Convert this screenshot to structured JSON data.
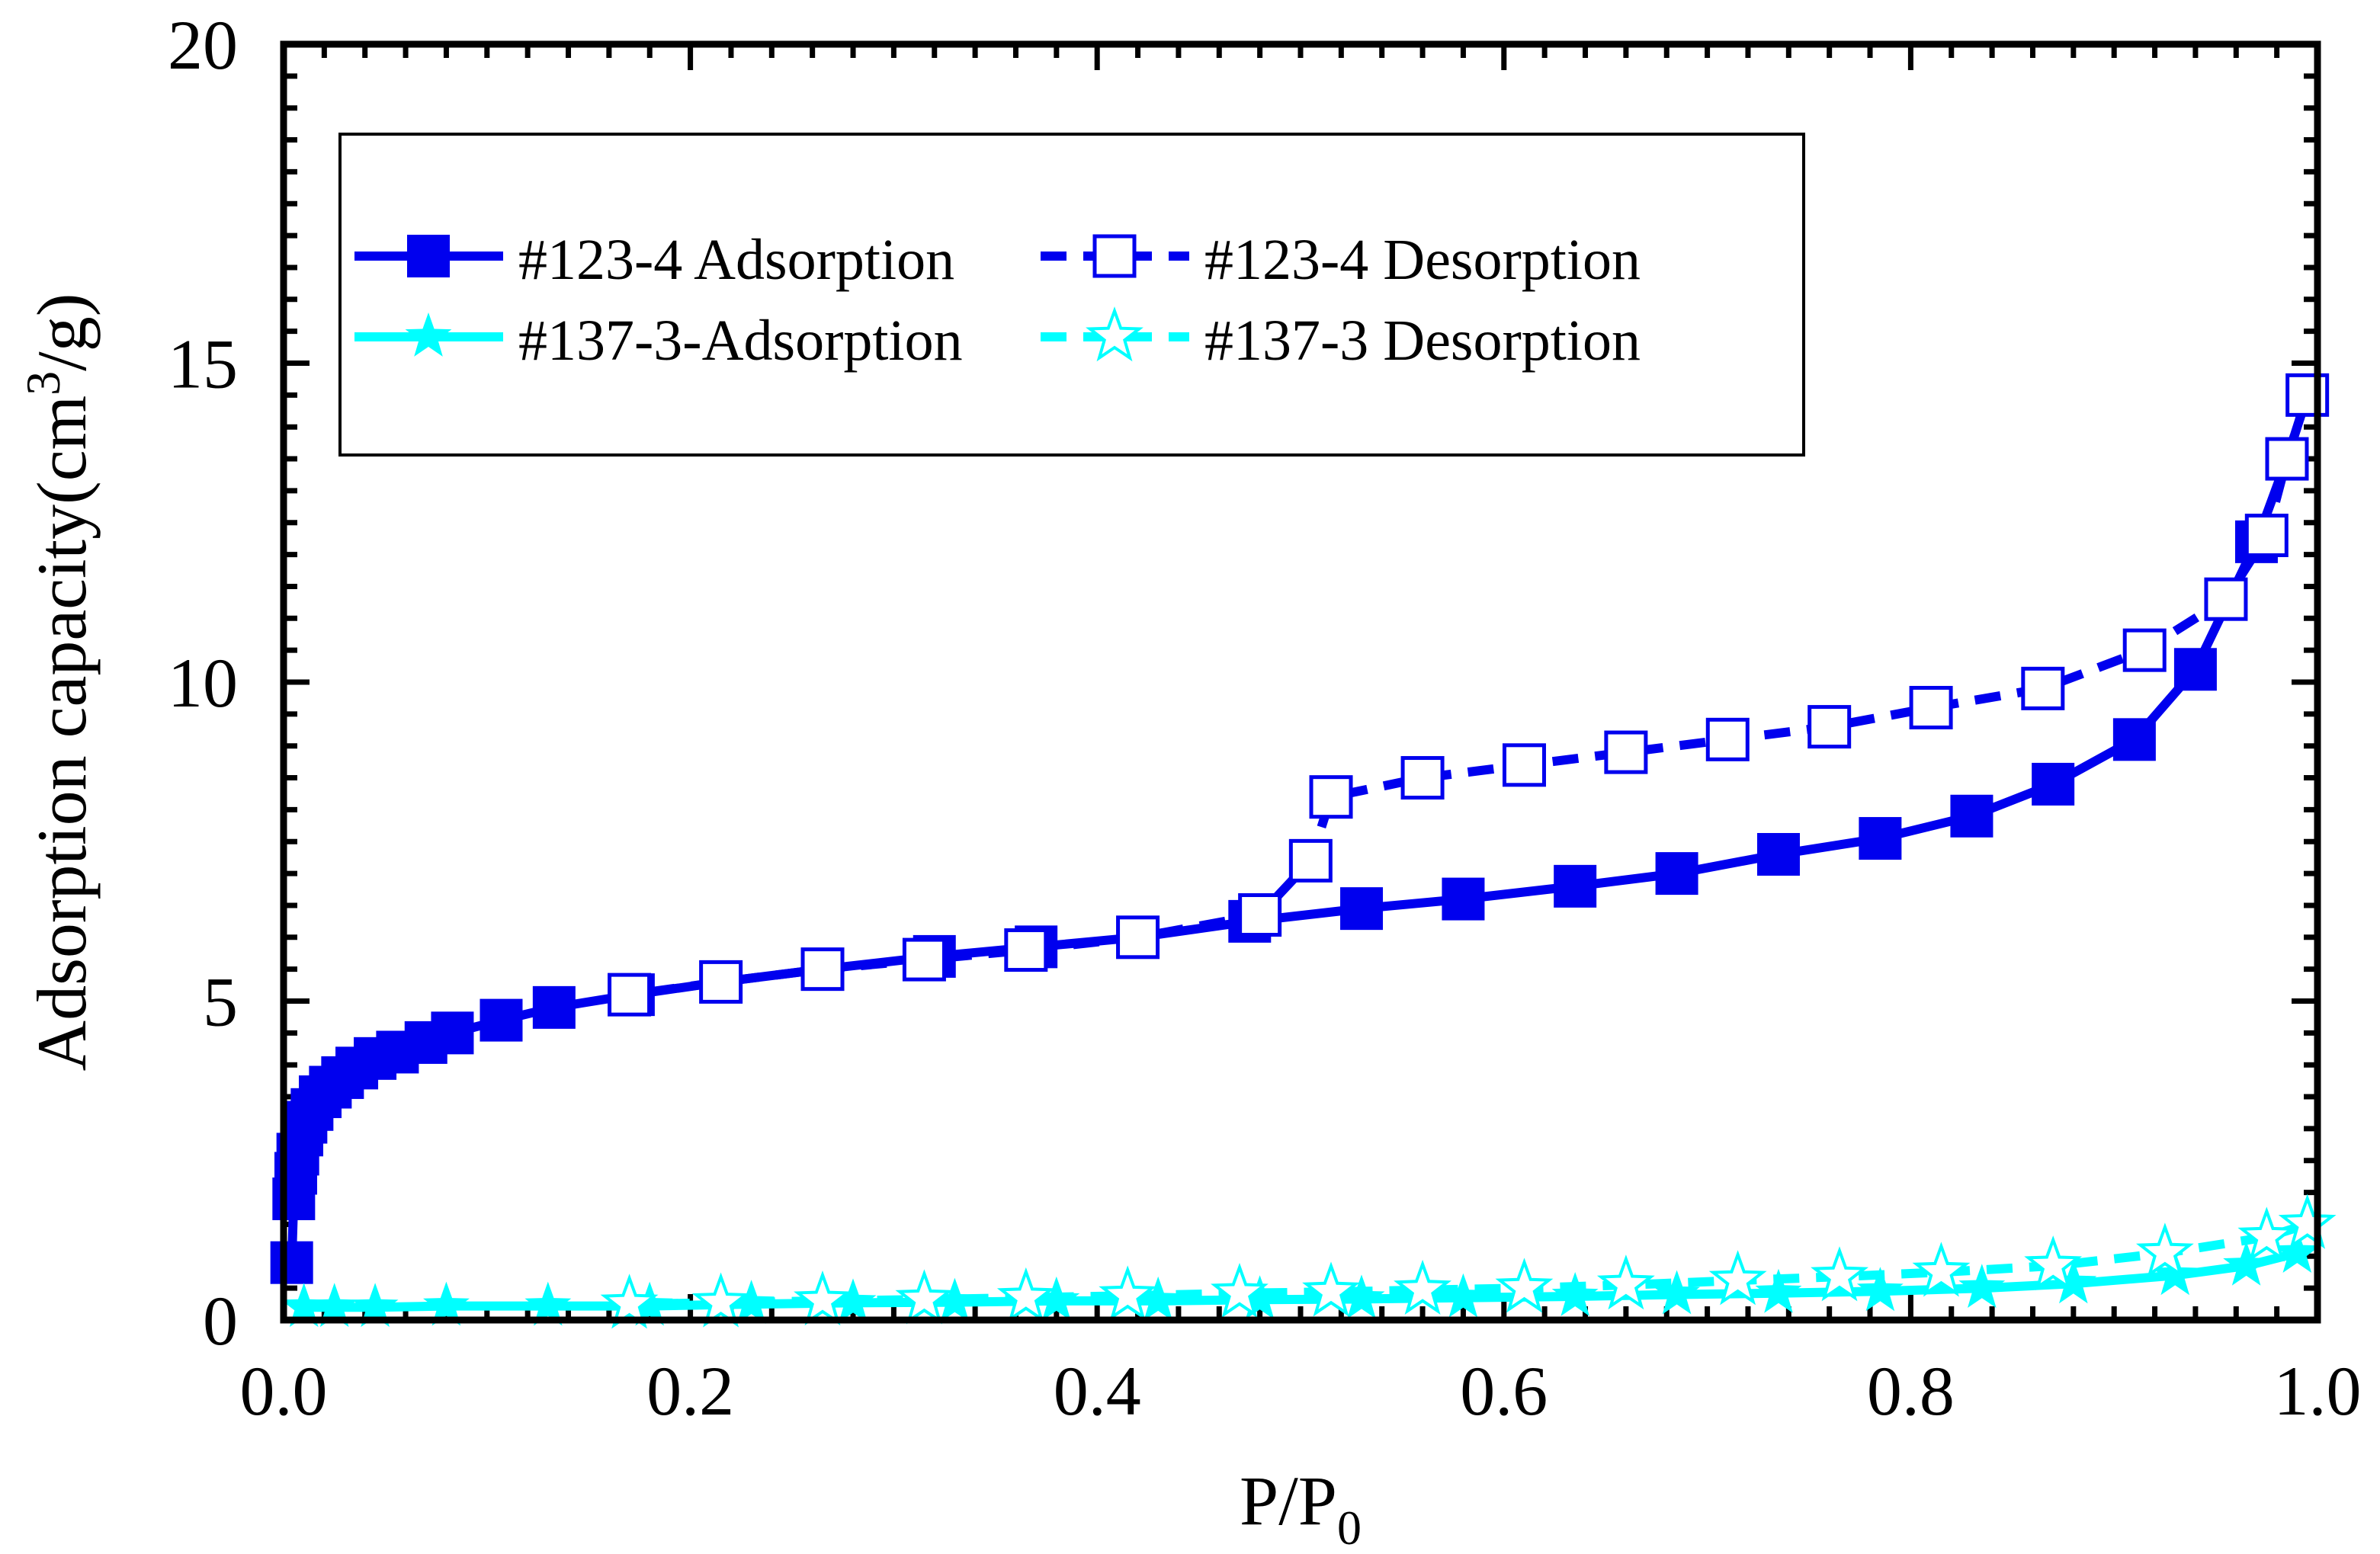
{
  "chart_data": {
    "type": "line",
    "title": "",
    "xlabel": "P/P",
    "xlabel_sub": "0",
    "ylabel": "Adsorption capacity(cm",
    "ylabel_sup": "3",
    "ylabel_tail": "/g)",
    "xlim": [
      0.0,
      1.0
    ],
    "ylim": [
      0,
      20
    ],
    "x_ticks": [
      0.0,
      0.2,
      0.4,
      0.6,
      0.8,
      1.0
    ],
    "x_tick_labels": [
      "0.0",
      "0.2",
      "0.4",
      "0.6",
      "0.8",
      "1.0"
    ],
    "y_ticks": [
      0,
      5,
      10,
      15,
      20
    ],
    "y_tick_labels": [
      "0",
      "5",
      "10",
      "15",
      "20"
    ],
    "legend_position": "top-left",
    "series": [
      {
        "name": "#123-4 Adsorption",
        "color": "#0000ee",
        "marker": "square-filled",
        "dashed": false,
        "x": [
          0.004,
          0.005,
          0.006,
          0.007,
          0.009,
          0.011,
          0.014,
          0.018,
          0.023,
          0.029,
          0.036,
          0.045,
          0.056,
          0.07,
          0.083,
          0.107,
          0.133,
          0.172,
          0.215,
          0.265,
          0.32,
          0.37,
          0.42,
          0.475,
          0.53,
          0.58,
          0.635,
          0.685,
          0.735,
          0.785,
          0.83,
          0.87,
          0.91,
          0.94,
          0.97,
          0.985,
          0.995
        ],
        "y": [
          0.9,
          1.9,
          2.3,
          2.6,
          2.9,
          3.1,
          3.3,
          3.5,
          3.65,
          3.8,
          3.95,
          4.1,
          4.2,
          4.35,
          4.5,
          4.7,
          4.9,
          5.1,
          5.3,
          5.5,
          5.7,
          5.85,
          6.0,
          6.25,
          6.45,
          6.6,
          6.8,
          7.0,
          7.3,
          7.55,
          7.9,
          8.4,
          9.1,
          10.2,
          12.2,
          13.5,
          14.5
        ]
      },
      {
        "name": "#123-4 Desorption",
        "color": "#0000ee",
        "marker": "square-open",
        "dashed": true,
        "x": [
          0.995,
          0.985,
          0.975,
          0.955,
          0.915,
          0.865,
          0.81,
          0.76,
          0.71,
          0.66,
          0.61,
          0.56,
          0.515,
          0.505,
          0.48,
          0.42,
          0.365,
          0.315,
          0.265,
          0.215,
          0.17
        ],
        "y": [
          14.5,
          13.5,
          12.3,
          11.3,
          10.5,
          9.9,
          9.6,
          9.3,
          9.1,
          8.9,
          8.7,
          8.5,
          8.2,
          7.2,
          6.35,
          6.0,
          5.8,
          5.65,
          5.5,
          5.3,
          5.1
        ]
      },
      {
        "name": "#137-3-Adsorption",
        "color": "#00ffff",
        "marker": "star-filled",
        "dashed": false,
        "x": [
          0.01,
          0.025,
          0.045,
          0.08,
          0.13,
          0.18,
          0.23,
          0.28,
          0.33,
          0.38,
          0.43,
          0.48,
          0.53,
          0.58,
          0.635,
          0.685,
          0.735,
          0.785,
          0.835,
          0.88,
          0.93,
          0.965,
          0.99
        ],
        "y": [
          0.2,
          0.2,
          0.2,
          0.22,
          0.22,
          0.22,
          0.25,
          0.27,
          0.28,
          0.3,
          0.3,
          0.32,
          0.33,
          0.35,
          0.37,
          0.4,
          0.42,
          0.45,
          0.5,
          0.57,
          0.7,
          0.85,
          1.05
        ]
      },
      {
        "name": "#137-3 Desorption",
        "color": "#00ffff",
        "marker": "star-open",
        "dashed": true,
        "x": [
          0.995,
          0.975,
          0.925,
          0.87,
          0.815,
          0.765,
          0.715,
          0.66,
          0.61,
          0.56,
          0.515,
          0.47,
          0.415,
          0.365,
          0.315,
          0.265,
          0.215,
          0.17
        ],
        "y": [
          1.5,
          1.3,
          1.05,
          0.85,
          0.75,
          0.68,
          0.62,
          0.55,
          0.5,
          0.47,
          0.44,
          0.42,
          0.38,
          0.35,
          0.32,
          0.3,
          0.27,
          0.25
        ]
      }
    ]
  }
}
